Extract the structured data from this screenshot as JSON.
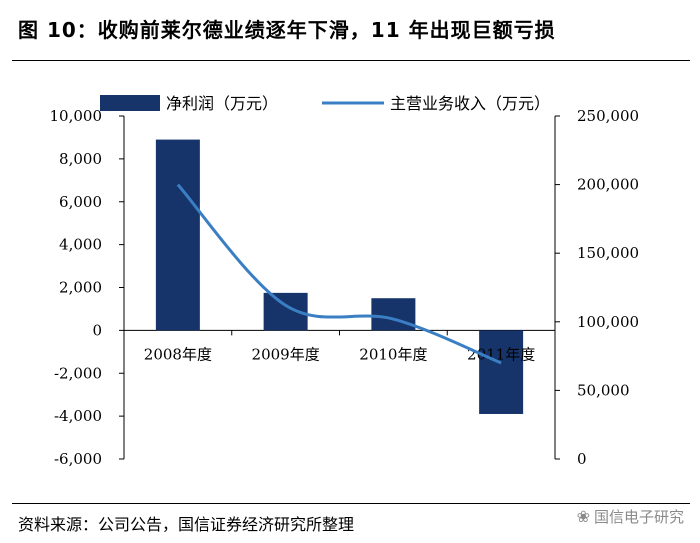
{
  "header": {
    "title": "图 10：收购前莱尔德业绩逐年下滑，11 年出现巨额亏损"
  },
  "footer": {
    "source": "资料来源：公司公告，国信证券经济研究所整理",
    "watermark": "国信电子研究",
    "watermark_icon": "wechat-icon"
  },
  "colors": {
    "bar": "#17346a",
    "line": "#3a7fc4"
  },
  "chart_data": {
    "type": "bar",
    "categories": [
      "2008年度",
      "2009年度",
      "2010年度",
      "2011年度"
    ],
    "series": [
      {
        "name": "净利润（万元）",
        "type": "bar",
        "axis": "left",
        "values": [
          8900,
          1750,
          1500,
          -3900
        ]
      },
      {
        "name": "主营业务收入（万元）",
        "type": "line",
        "axis": "right",
        "values": [
          200000,
          112000,
          102000,
          70000
        ]
      }
    ],
    "y_left": {
      "min": -6000,
      "max": 10000,
      "ticks": [
        10000,
        8000,
        6000,
        4000,
        2000,
        0,
        -2000,
        -4000,
        -6000
      ],
      "tick_labels": [
        "10,000",
        "8,000",
        "6,000",
        "4,000",
        "2,000",
        "0",
        "-2,000",
        "-4,000",
        "-6,000"
      ]
    },
    "y_right": {
      "min": 0,
      "max": 250000,
      "ticks": [
        250000,
        200000,
        150000,
        100000,
        50000,
        0
      ],
      "tick_labels": [
        "250,000",
        "200,000",
        "150,000",
        "100,000",
        "50,000",
        "0"
      ]
    },
    "legend_position": "top"
  }
}
